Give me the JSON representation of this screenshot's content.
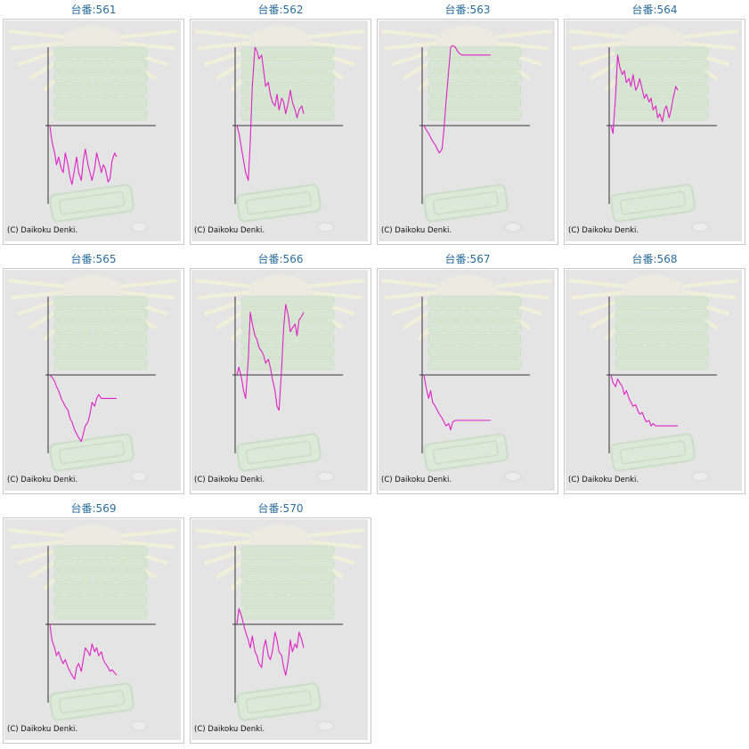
{
  "copyright": "(C) Daikoku Denki.",
  "colors": {
    "title": "#2b6e9e",
    "line": "#e020c8",
    "axis": "#333333",
    "panel_bg": "#e4e4e4"
  },
  "machines": [
    {
      "title": "台番:561"
    },
    {
      "title": "台番:562"
    },
    {
      "title": "台番:563"
    },
    {
      "title": "台番:564"
    },
    {
      "title": "台番:565"
    },
    {
      "title": "台番:566"
    },
    {
      "title": "台番:567"
    },
    {
      "title": "台番:568"
    },
    {
      "title": "台番:569"
    },
    {
      "title": "台番:570"
    }
  ],
  "chart_data": [
    {
      "type": "line",
      "title": "台番:561",
      "ylim": [
        -1,
        1
      ],
      "x": [
        0,
        0.03,
        0.07,
        0.1,
        0.13,
        0.17,
        0.2,
        0.23,
        0.27,
        0.3,
        0.33,
        0.37,
        0.4,
        0.43,
        0.47,
        0.5,
        0.53,
        0.57,
        0.6,
        0.63,
        0.67,
        0.7,
        0.73,
        0.77,
        0.8,
        0.83,
        0.87,
        0.9,
        0.93,
        0.97,
        1
      ],
      "values": [
        0,
        -0.2,
        -0.35,
        -0.5,
        -0.4,
        -0.55,
        -0.6,
        -0.35,
        -0.5,
        -0.65,
        -0.75,
        -0.55,
        -0.4,
        -0.6,
        -0.7,
        -0.45,
        -0.3,
        -0.5,
        -0.6,
        -0.7,
        -0.55,
        -0.35,
        -0.45,
        -0.6,
        -0.5,
        -0.55,
        -0.72,
        -0.68,
        -0.45,
        -0.35,
        -0.4
      ]
    },
    {
      "type": "line",
      "title": "台番:562",
      "ylim": [
        -1,
        1
      ],
      "x": [
        0,
        0.03,
        0.07,
        0.1,
        0.13,
        0.17,
        0.2,
        0.23,
        0.27,
        0.3,
        0.33,
        0.37,
        0.4,
        0.43,
        0.47,
        0.5,
        0.53,
        0.57,
        0.6,
        0.63,
        0.67,
        0.7,
        0.73,
        0.77,
        0.8,
        0.83,
        0.87,
        0.9,
        0.93,
        0.97,
        1
      ],
      "values": [
        0,
        -0.1,
        -0.3,
        -0.45,
        -0.6,
        -0.7,
        -0.2,
        0.5,
        1.0,
        0.95,
        0.85,
        0.9,
        0.7,
        0.5,
        0.55,
        0.4,
        0.3,
        0.25,
        0.4,
        0.2,
        0.35,
        0.3,
        0.15,
        0.3,
        0.45,
        0.3,
        0.2,
        0.1,
        0.2,
        0.25,
        0.15
      ]
    },
    {
      "type": "line",
      "title": "台番:563",
      "ylim": [
        -1,
        1
      ],
      "x": [
        0,
        0.03,
        0.07,
        0.1,
        0.13,
        0.17,
        0.2,
        0.23,
        0.27,
        0.3,
        0.33,
        0.37,
        0.4,
        0.43,
        0.47,
        0.5,
        0.53,
        0.57,
        0.6,
        0.63,
        0.67,
        0.7,
        0.73,
        0.77,
        0.8,
        0.83,
        0.87,
        0.9,
        0.93,
        0.97,
        1
      ],
      "values": [
        0,
        -0.05,
        -0.1,
        -0.15,
        -0.2,
        -0.25,
        -0.3,
        -0.35,
        -0.3,
        -0.05,
        0.3,
        0.7,
        1.0,
        1.02,
        1.0,
        0.95,
        0.92,
        0.9,
        0.9,
        0.9,
        0.9,
        0.9,
        0.9,
        0.9,
        0.9,
        0.9,
        0.9,
        0.9,
        0.9,
        0.9,
        0.9
      ]
    },
    {
      "type": "line",
      "title": "台番:564",
      "ylim": [
        -1,
        1
      ],
      "x": [
        0,
        0.03,
        0.07,
        0.1,
        0.13,
        0.17,
        0.2,
        0.23,
        0.27,
        0.3,
        0.33,
        0.37,
        0.4,
        0.43,
        0.47,
        0.5,
        0.53,
        0.57,
        0.6,
        0.63,
        0.67,
        0.7,
        0.73,
        0.77,
        0.8,
        0.83,
        0.87,
        0.9,
        0.93,
        0.97,
        1
      ],
      "values": [
        0,
        -0.1,
        0.4,
        0.9,
        0.75,
        0.65,
        0.7,
        0.55,
        0.6,
        0.5,
        0.65,
        0.45,
        0.5,
        0.6,
        0.45,
        0.35,
        0.4,
        0.3,
        0.35,
        0.2,
        0.25,
        0.1,
        0.15,
        0.05,
        0.2,
        0.25,
        0.1,
        0.2,
        0.35,
        0.5,
        0.45
      ]
    },
    {
      "type": "line",
      "title": "台番:565",
      "ylim": [
        -1,
        1
      ],
      "x": [
        0,
        0.03,
        0.07,
        0.1,
        0.13,
        0.17,
        0.2,
        0.23,
        0.27,
        0.3,
        0.33,
        0.37,
        0.4,
        0.43,
        0.47,
        0.5,
        0.53,
        0.57,
        0.6,
        0.63,
        0.67,
        0.7,
        0.73,
        0.77,
        0.8,
        0.83,
        0.87,
        0.9,
        0.93,
        0.97,
        1
      ],
      "values": [
        0,
        -0.03,
        -0.08,
        -0.15,
        -0.2,
        -0.3,
        -0.35,
        -0.4,
        -0.45,
        -0.55,
        -0.6,
        -0.7,
        -0.75,
        -0.8,
        -0.85,
        -0.75,
        -0.65,
        -0.6,
        -0.5,
        -0.35,
        -0.4,
        -0.3,
        -0.25,
        -0.3,
        -0.3,
        -0.3,
        -0.3,
        -0.3,
        -0.3,
        -0.3,
        -0.3
      ]
    },
    {
      "type": "line",
      "title": "台番:566",
      "ylim": [
        -1,
        1
      ],
      "x": [
        0,
        0.03,
        0.07,
        0.1,
        0.13,
        0.17,
        0.2,
        0.23,
        0.27,
        0.3,
        0.33,
        0.37,
        0.4,
        0.43,
        0.47,
        0.5,
        0.53,
        0.57,
        0.6,
        0.63,
        0.67,
        0.7,
        0.73,
        0.77,
        0.8,
        0.83,
        0.87,
        0.9,
        0.93,
        0.97,
        1
      ],
      "values": [
        0,
        0.1,
        -0.05,
        -0.2,
        -0.3,
        0.2,
        0.8,
        0.65,
        0.5,
        0.45,
        0.35,
        0.3,
        0.25,
        0.15,
        0.2,
        0.1,
        -0.05,
        -0.2,
        -0.4,
        -0.45,
        0.1,
        0.6,
        0.9,
        0.75,
        0.55,
        0.6,
        0.65,
        0.5,
        0.7,
        0.75,
        0.8
      ]
    },
    {
      "type": "line",
      "title": "台番:567",
      "ylim": [
        -1,
        1
      ],
      "x": [
        0,
        0.03,
        0.07,
        0.1,
        0.13,
        0.17,
        0.2,
        0.23,
        0.27,
        0.3,
        0.33,
        0.37,
        0.4,
        0.43,
        0.47,
        0.5,
        0.53,
        0.57,
        0.6,
        0.63,
        0.67,
        0.7,
        0.73,
        0.77,
        0.8,
        0.83,
        0.87,
        0.9,
        0.93,
        0.97,
        1
      ],
      "values": [
        0,
        -0.15,
        -0.3,
        -0.2,
        -0.35,
        -0.4,
        -0.45,
        -0.5,
        -0.55,
        -0.6,
        -0.65,
        -0.62,
        -0.7,
        -0.6,
        -0.58,
        -0.58,
        -0.58,
        -0.58,
        -0.58,
        -0.58,
        -0.58,
        -0.58,
        -0.58,
        -0.58,
        -0.58,
        -0.58,
        -0.58,
        -0.58,
        -0.58,
        -0.58,
        -0.58
      ]
    },
    {
      "type": "line",
      "title": "台番:568",
      "ylim": [
        -1,
        1
      ],
      "x": [
        0,
        0.03,
        0.07,
        0.1,
        0.13,
        0.17,
        0.2,
        0.23,
        0.27,
        0.3,
        0.33,
        0.37,
        0.4,
        0.43,
        0.47,
        0.5,
        0.53,
        0.57,
        0.6,
        0.63,
        0.67,
        0.7,
        0.73,
        0.77,
        0.8,
        0.83,
        0.87,
        0.9,
        0.93,
        0.97,
        1
      ],
      "values": [
        0,
        -0.1,
        -0.15,
        -0.05,
        -0.1,
        -0.15,
        -0.25,
        -0.2,
        -0.3,
        -0.35,
        -0.4,
        -0.38,
        -0.45,
        -0.5,
        -0.48,
        -0.55,
        -0.6,
        -0.58,
        -0.65,
        -0.62,
        -0.65,
        -0.65,
        -0.65,
        -0.65,
        -0.65,
        -0.65,
        -0.65,
        -0.65,
        -0.65,
        -0.65,
        -0.65
      ]
    },
    {
      "type": "line",
      "title": "台番:569",
      "ylim": [
        -1,
        1
      ],
      "x": [
        0,
        0.03,
        0.07,
        0.1,
        0.13,
        0.17,
        0.2,
        0.23,
        0.27,
        0.3,
        0.33,
        0.37,
        0.4,
        0.43,
        0.47,
        0.5,
        0.53,
        0.57,
        0.6,
        0.63,
        0.67,
        0.7,
        0.73,
        0.77,
        0.8,
        0.83,
        0.87,
        0.9,
        0.93,
        0.97,
        1
      ],
      "values": [
        0,
        -0.2,
        -0.3,
        -0.4,
        -0.35,
        -0.45,
        -0.5,
        -0.45,
        -0.55,
        -0.6,
        -0.65,
        -0.7,
        -0.55,
        -0.5,
        -0.6,
        -0.45,
        -0.3,
        -0.35,
        -0.4,
        -0.25,
        -0.35,
        -0.3,
        -0.4,
        -0.35,
        -0.45,
        -0.5,
        -0.55,
        -0.6,
        -0.58,
        -0.62,
        -0.65
      ]
    },
    {
      "type": "line",
      "title": "台番:570",
      "ylim": [
        -1,
        1
      ],
      "x": [
        0,
        0.03,
        0.07,
        0.1,
        0.13,
        0.17,
        0.2,
        0.23,
        0.27,
        0.3,
        0.33,
        0.37,
        0.4,
        0.43,
        0.47,
        0.5,
        0.53,
        0.57,
        0.6,
        0.63,
        0.67,
        0.7,
        0.73,
        0.77,
        0.8,
        0.83,
        0.87,
        0.9,
        0.93,
        0.97,
        1
      ],
      "values": [
        0,
        0.2,
        0.1,
        0.0,
        -0.1,
        -0.2,
        -0.3,
        -0.15,
        -0.35,
        -0.4,
        -0.5,
        -0.55,
        -0.3,
        -0.2,
        -0.4,
        -0.45,
        -0.35,
        -0.1,
        -0.2,
        -0.35,
        -0.4,
        -0.55,
        -0.65,
        -0.45,
        -0.2,
        -0.35,
        -0.25,
        -0.3,
        -0.1,
        -0.2,
        -0.3
      ]
    }
  ]
}
